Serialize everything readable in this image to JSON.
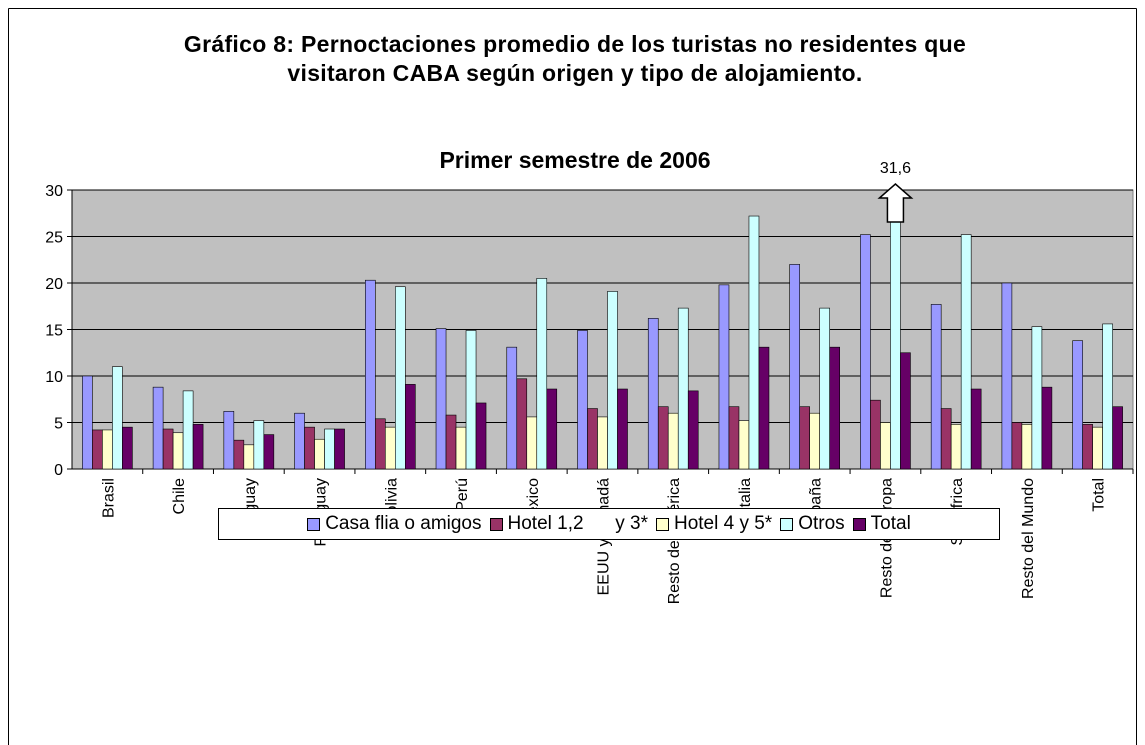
{
  "chart_data": {
    "type": "bar",
    "title": "Gráfico 8: Pernoctaciones promedio de los turistas no residentes que visitaron CABA según origen y tipo de alojamiento.",
    "subtitle": "Primer semestre de 2006",
    "categories": [
      "Brasil",
      "Chile",
      "Uruguay",
      "Paraguay",
      "Bolivia",
      "Perú",
      "México",
      "EEUU y Canadá",
      "Resto de América",
      "Italia",
      "España",
      "Resto de Europa",
      "Sudáfrica",
      "Resto del Mundo",
      "Total"
    ],
    "series": [
      {
        "name": "Casa flia o amigos",
        "color": "#9999ff",
        "values": [
          10,
          8.8,
          6.2,
          6.0,
          20.3,
          15.1,
          13.1,
          14.9,
          16.2,
          19.8,
          22.0,
          25.2,
          17.7,
          20.0,
          13.8
        ]
      },
      {
        "name": "Hotel 1,2      y 3*",
        "color": "#993366",
        "values": [
          4.2,
          4.3,
          3.1,
          4.5,
          5.4,
          5.8,
          9.7,
          6.5,
          6.7,
          6.7,
          6.7,
          7.4,
          6.5,
          5.0,
          4.8
        ]
      },
      {
        "name": "Hotel 4 y 5*",
        "color": "#ffffcc",
        "values": [
          4.2,
          3.9,
          2.6,
          3.2,
          4.5,
          4.5,
          5.6,
          5.6,
          6.0,
          5.2,
          6.0,
          5.0,
          4.8,
          4.8,
          4.5
        ]
      },
      {
        "name": "Otros",
        "color": "#ccffff",
        "values": [
          11.0,
          8.4,
          5.2,
          4.3,
          19.6,
          14.9,
          20.5,
          19.1,
          17.3,
          27.2,
          17.3,
          31.6,
          25.2,
          15.3,
          15.6
        ],
        "value_labels": [
          null,
          null,
          null,
          null,
          null,
          null,
          null,
          null,
          null,
          null,
          null,
          "31,6",
          null,
          null,
          null
        ]
      },
      {
        "name": "Total",
        "color": "#660066",
        "values": [
          4.5,
          4.8,
          3.7,
          4.3,
          9.1,
          7.1,
          8.6,
          8.6,
          8.4,
          13.1,
          13.1,
          12.5,
          8.6,
          8.8,
          6.7
        ]
      }
    ],
    "ylim": [
      0,
      30
    ],
    "yticks": [
      0,
      5,
      10,
      15,
      20,
      25,
      30
    ],
    "grid": true,
    "plot_background": "#c0c0c0",
    "legend": "bottom"
  }
}
